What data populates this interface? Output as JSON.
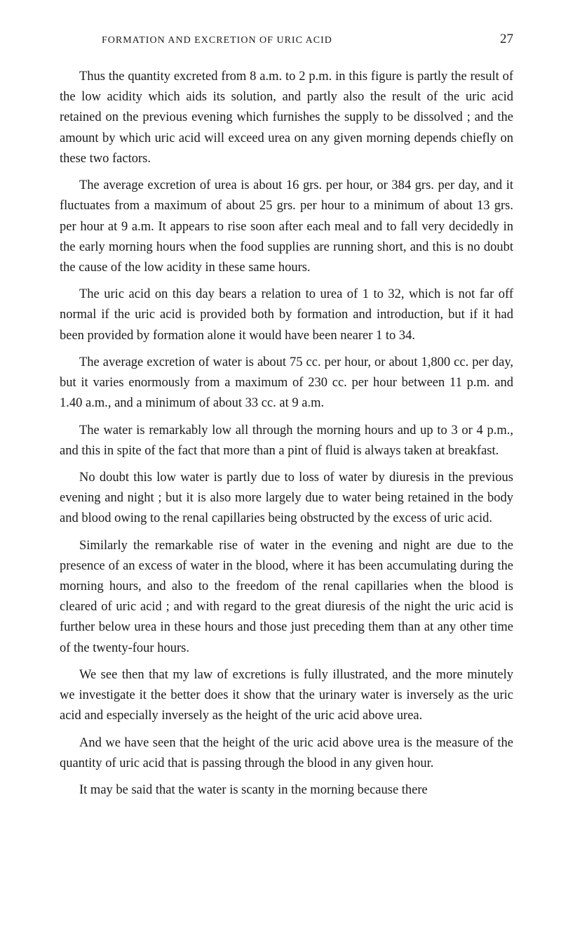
{
  "header": {
    "running_title": "FORMATION AND EXCRETION OF URIC ACID",
    "page_number": "27"
  },
  "paragraphs": {
    "p1": "Thus the quantity excreted from 8 a.m. to 2 p.m. in this figure is partly the result of the low acidity which aids its solution, and partly also the result of the uric acid retained on the previous evening which furnishes the supply to be dissolved ; and the amount by which uric acid will exceed urea on any given morning depends chiefly on these two factors.",
    "p2": "The average excretion of urea is about 16 grs. per hour, or 384 grs. per day, and it fluctuates from a maximum of about 25 grs. per hour to a minimum of about 13 grs. per hour at 9 a.m. It appears to rise soon after each meal and to fall very decidedly in the early morning hours when the food supplies are running short, and this is no doubt the cause of the low acidity in these same hours.",
    "p3": "The uric acid on this day bears a relation to urea of 1 to 32, which is not far off normal if the uric acid is provided both by formation and introduction, but if it had been provided by formation alone it would have been nearer 1 to 34.",
    "p4": "The average excretion of water is about 75 cc. per hour, or about 1,800 cc. per day, but it varies enormously from a maximum of 230 cc. per hour between 11 p.m. and 1.40 a.m., and a minimum of about 33 cc. at 9 a.m.",
    "p5": "The water is remarkably low all through the morning hours and up to 3 or 4 p.m., and this in spite of the fact that more than a pint of fluid is always taken at breakfast.",
    "p6": "No doubt this low water is partly due to loss of water by diuresis in the previous evening and night ; but it is also more largely due to water being retained in the body and blood owing to the renal capillaries being obstructed by the excess of uric acid.",
    "p7": "Similarly the remarkable rise of water in the evening and night are due to the presence of an excess of water in the blood, where it has been accumulating during the morning hours, and also to the freedom of the renal capillaries when the blood is cleared of uric acid ; and with regard to the great diuresis of the night the uric acid is further below urea in these hours and those just preceding them than at any other time of the twenty-four hours.",
    "p8": "We see then that my law of excretions is fully illustrated, and the more minutely we investigate it the better does it show that the urinary water is inversely as the uric acid and especially inversely as the height of the uric acid above urea.",
    "p9": "And we have seen that the height of the uric acid above urea is the measure of the quantity of uric acid that is passing through the blood in any given hour.",
    "p10": "It may be said that the water is scanty in the morning because there"
  }
}
